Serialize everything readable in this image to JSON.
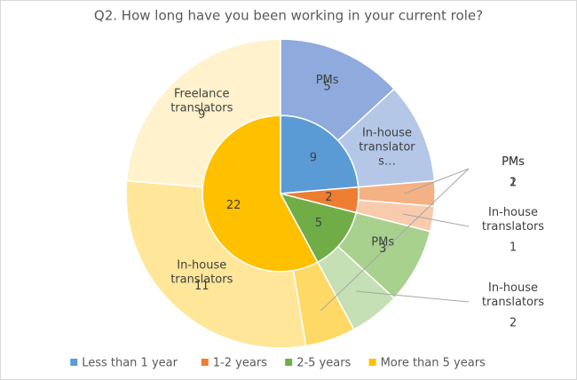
{
  "chart_data": {
    "type": "sunburst",
    "title": "Q2. How long have you been working in your current role?",
    "series": [
      {
        "name": "Less than 1 year",
        "color": "#5b9bd5",
        "value": 9,
        "children": [
          {
            "name": "PMs",
            "color": "#8faadc",
            "value": 5
          },
          {
            "name": "In-house translator s…",
            "color": "#b4c7e7",
            "value": 4,
            "truncated": true
          }
        ]
      },
      {
        "name": "1-2 years",
        "color": "#ed7d31",
        "value": 2,
        "children": [
          {
            "name": "PMs",
            "color": "#f4b183",
            "value": 1
          },
          {
            "name": "In-house translators",
            "color": "#f8cbad",
            "value": 1
          }
        ]
      },
      {
        "name": "2-5 years",
        "color": "#70ad47",
        "value": 5,
        "children": [
          {
            "name": "PMs",
            "color": "#a9d18e",
            "value": 3
          },
          {
            "name": "In-house translators",
            "color": "#c5e0b4",
            "value": 2
          }
        ]
      },
      {
        "name": "More than 5 years",
        "color": "#ffc000",
        "value": 22,
        "children": [
          {
            "name": "PMs",
            "color": "#ffd966",
            "value": 2
          },
          {
            "name": "In-house translators",
            "color": "#ffe699",
            "value": 11
          },
          {
            "name": "Freelance translators",
            "color": "#fff2cc",
            "value": 9
          }
        ]
      }
    ]
  }
}
